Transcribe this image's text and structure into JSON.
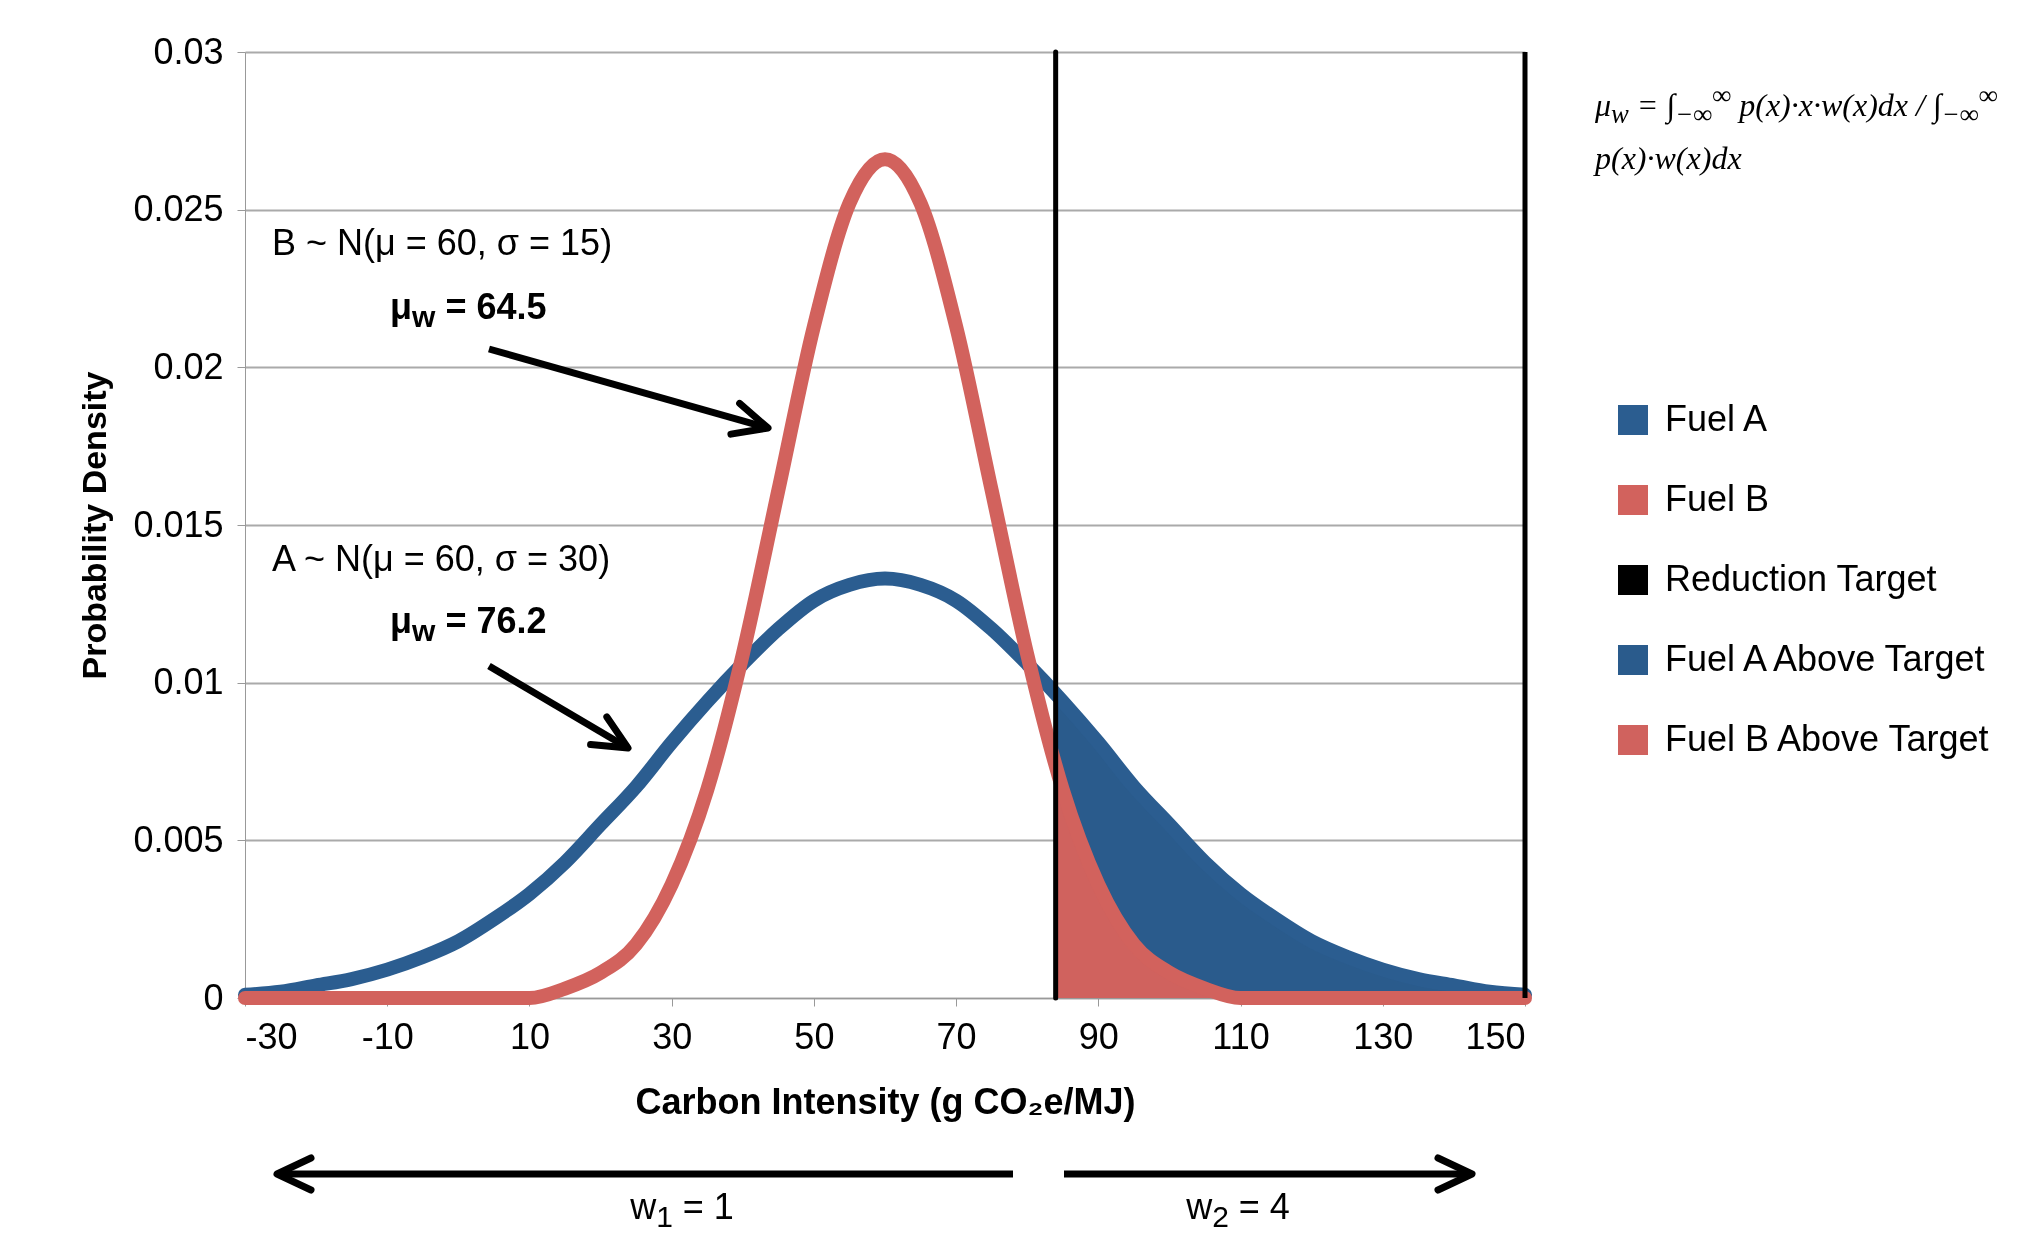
{
  "chart_data": {
    "type": "line",
    "xlabel": "Carbon Intensity (g CO₂e/MJ)",
    "ylabel": "Probability Density",
    "xlim": [
      -30,
      150
    ],
    "xticks": [
      -30,
      -10,
      10,
      30,
      50,
      70,
      90,
      110,
      130,
      150
    ],
    "ylim": [
      0,
      0.03
    ],
    "yticks": [
      0,
      0.005,
      0.01,
      0.015,
      0.02,
      0.025,
      0.03
    ],
    "grid": "y",
    "legend": "right",
    "series": [
      {
        "name": "Fuel A",
        "color": "#2b5d90",
        "x": [
          -30,
          -25,
          -20,
          -15,
          -10,
          -5,
          0,
          5,
          10,
          15,
          20,
          25,
          30,
          35,
          40,
          45,
          50,
          55,
          60,
          65,
          70,
          75,
          80,
          85,
          90,
          95,
          100,
          105,
          110,
          115,
          120,
          125,
          130,
          135,
          140,
          145,
          150
        ],
        "values": [
          0.0001,
          0.0002,
          0.0004,
          0.0006,
          0.0009,
          0.0013,
          0.0018,
          0.0025,
          0.0033,
          0.0043,
          0.0055,
          0.0067,
          0.0081,
          0.0094,
          0.0106,
          0.0117,
          0.0126,
          0.0131,
          0.0133,
          0.0131,
          0.0126,
          0.0117,
          0.0106,
          0.0094,
          0.0081,
          0.0067,
          0.0055,
          0.0043,
          0.0033,
          0.0025,
          0.0018,
          0.0013,
          0.0009,
          0.0006,
          0.0004,
          0.0002,
          0.0001
        ]
      },
      {
        "name": "Fuel B",
        "color": "#d2625d",
        "x": [
          -30,
          -25,
          -20,
          -15,
          -10,
          -5,
          0,
          5,
          10,
          15,
          20,
          25,
          30,
          35,
          40,
          45,
          50,
          55,
          60,
          65,
          70,
          75,
          80,
          85,
          90,
          95,
          100,
          105,
          110,
          115,
          120,
          125,
          130,
          135,
          140,
          145,
          150
        ],
        "values": [
          0,
          0,
          0,
          0,
          0,
          0,
          0,
          0,
          0,
          0.0003,
          0.0008,
          0.0017,
          0.0036,
          0.0066,
          0.0109,
          0.0161,
          0.0213,
          0.0252,
          0.0266,
          0.0252,
          0.0213,
          0.0161,
          0.0109,
          0.0066,
          0.0036,
          0.0017,
          0.0008,
          0.0003,
          0,
          0,
          0,
          0,
          0,
          0,
          0,
          0,
          0
        ]
      },
      {
        "name": "Reduction Target",
        "color": "#000000",
        "x": [
          84,
          84
        ],
        "values": [
          0,
          0.03
        ]
      },
      {
        "name": "Fuel A Above Target",
        "type": "area",
        "color": "#2a5b8c",
        "x": [
          84,
          85,
          90,
          95,
          100,
          105,
          110,
          115,
          120,
          125,
          130,
          135,
          140,
          145,
          150
        ],
        "values": [
          0.0097,
          0.0094,
          0.0081,
          0.0067,
          0.0055,
          0.0043,
          0.0033,
          0.0025,
          0.0018,
          0.0013,
          0.0009,
          0.0006,
          0.0004,
          0.0002,
          0.0001
        ]
      },
      {
        "name": "Fuel B Above Target",
        "type": "area",
        "color": "#d0625e",
        "x": [
          84,
          85,
          90,
          95,
          100,
          105,
          110
        ],
        "values": [
          0.0074,
          0.0066,
          0.0036,
          0.0017,
          0.0008,
          0.0003,
          0
        ]
      }
    ],
    "ref_lines": [
      {
        "axis": "x",
        "value": 150,
        "color": "#000000"
      }
    ],
    "annotations": [
      "B ~ N(μ = 60, σ = 15)",
      "μ$_{w}$ = 64.5",
      "A ~ N(μ = 60, σ = 30)",
      "μ$_{w}$ = 76.2",
      "w$_{1}$ = 1",
      "w$_{2}$ = 4",
      "μ$_{w}$ = ∫$_{−∞}$$^{∞}$ p(x)·x·w(x)dx / ∫$_{−∞}$$^{∞}$ p(x)·w(x)dx"
    ]
  }
}
